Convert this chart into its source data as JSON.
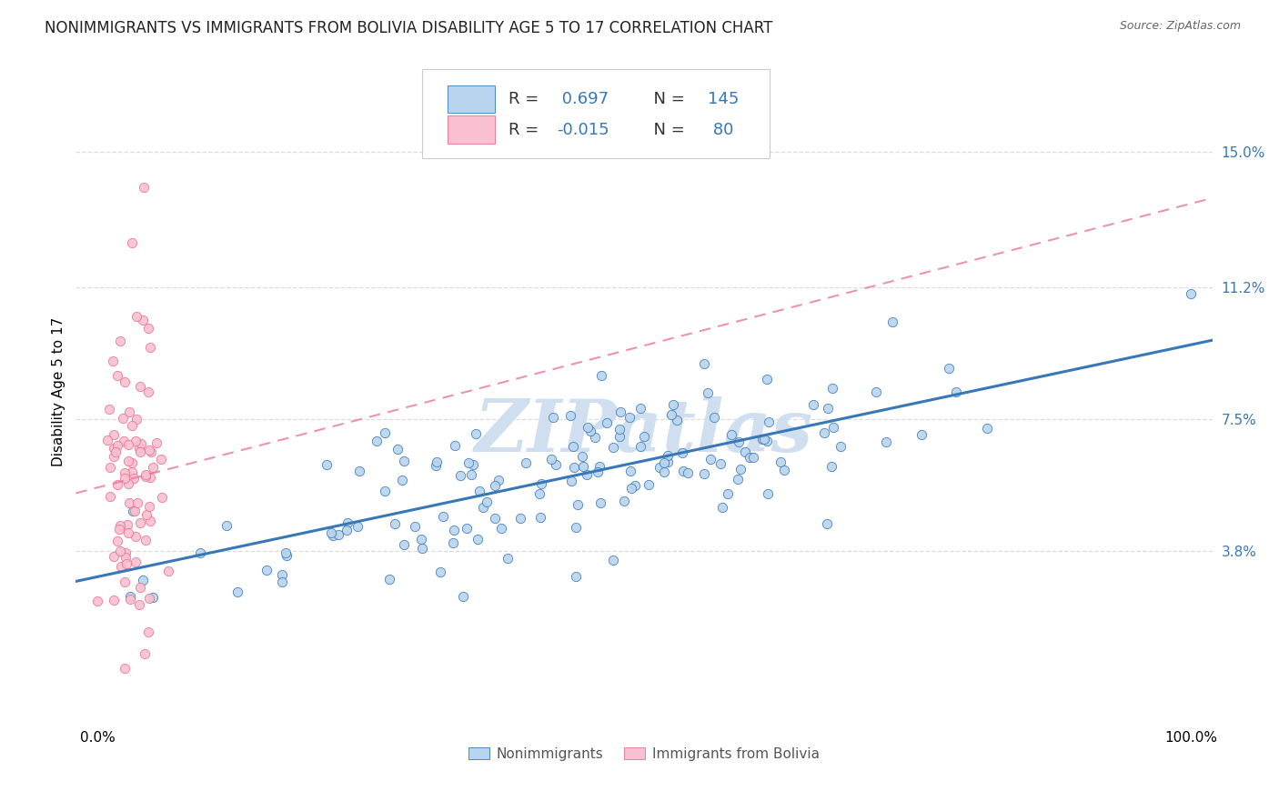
{
  "title": "NONIMMIGRANTS VS IMMIGRANTS FROM BOLIVIA DISABILITY AGE 5 TO 17 CORRELATION CHART",
  "source": "Source: ZipAtlas.com",
  "ylabel": "Disability Age 5 to 17",
  "yticks_labels": [
    "15.0%",
    "11.2%",
    "7.5%",
    "3.8%"
  ],
  "ytick_vals": [
    0.15,
    0.112,
    0.075,
    0.038
  ],
  "xlim": [
    -0.02,
    1.02
  ],
  "ylim": [
    -0.01,
    0.175
  ],
  "r_nonimm": 0.697,
  "n_nonimm": 145,
  "r_imm": -0.015,
  "n_imm": 80,
  "nonimmigrant_color": "#b8d4ee",
  "immigrant_color": "#f8c0d0",
  "line_nonimmigrant_color": "#3878b8",
  "line_immigrant_color": "#e87090",
  "background_color": "#ffffff",
  "watermark": "ZIPatlas",
  "watermark_color": "#d0dff0",
  "grid_color": "#dddddd",
  "title_fontsize": 12,
  "axis_label_fontsize": 11,
  "tick_fontsize": 11,
  "legend_r_color": "#3878b8",
  "legend_n_color": "#3878b8",
  "legend_label_color": "#333333"
}
